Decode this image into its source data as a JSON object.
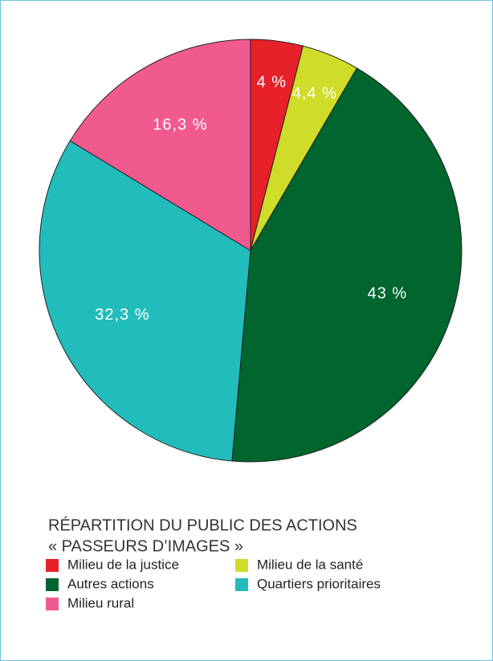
{
  "chart_data": {
    "type": "pie",
    "title": [
      "RÉPARTITION DU PUBLIC DES ACTIONS",
      "« PASSEURS D’IMAGES »"
    ],
    "categories": [
      "Milieu de la justice",
      "Milieu de la santé",
      "Autres actions",
      "Quartiers prioritaires",
      "Milieu rural"
    ],
    "values": [
      4,
      4.4,
      43,
      32.3,
      16.3
    ],
    "value_labels": [
      "4 %",
      "4,4 %",
      "43 %",
      "32,3 %",
      "16,3 %"
    ],
    "colors": [
      "#e62129",
      "#cfdc2a",
      "#00652e",
      "#22bcbc",
      "#f05a8f"
    ]
  }
}
